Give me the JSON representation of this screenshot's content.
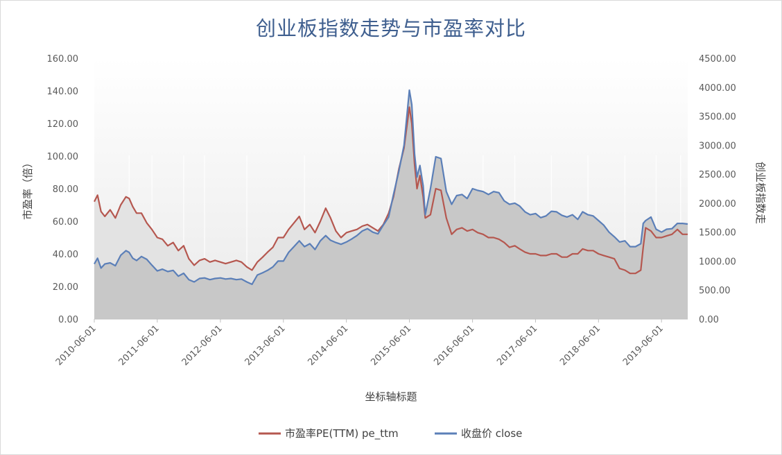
{
  "chart_data": {
    "type": "line",
    "title": "创业板指数走势与市盈率对比",
    "xlabel": "坐标轴标题",
    "ylabel_left": "市盈率（倍）",
    "ylabel_right": "创业板指数走",
    "ylim_left": [
      0,
      160
    ],
    "ylim_right": [
      0,
      4500
    ],
    "grid": false,
    "legend_position": "bottom",
    "x_start": "2010-06-01",
    "x_end": "2019-10-31",
    "x_tick_labels": [
      "2010-06-01",
      "2011-06-01",
      "2012-06-01",
      "2013-06-01",
      "2014-06-01",
      "2015-06-01",
      "2016-06-01",
      "2017-06-01",
      "2018-06-01",
      "2019-06-01"
    ],
    "y_left_tick_labels": [
      "0.00",
      "20.00",
      "40.00",
      "60.00",
      "80.00",
      "100.00",
      "120.00",
      "140.00",
      "160.00"
    ],
    "y_right_tick_labels": [
      "0.00",
      "500.00",
      "1000.00",
      "1500.00",
      "2000.00",
      "2500.00",
      "3000.00",
      "3500.00",
      "4000.00",
      "4500.00"
    ],
    "series": [
      {
        "name": "市盈率PE(TTM) pe_ttm",
        "axis": "left",
        "color": "#b5574f",
        "points": [
          [
            "2010-06-01",
            72
          ],
          [
            "2010-06-20",
            76
          ],
          [
            "2010-07-10",
            66
          ],
          [
            "2010-08-01",
            63
          ],
          [
            "2010-09-01",
            67
          ],
          [
            "2010-10-01",
            62
          ],
          [
            "2010-11-01",
            70
          ],
          [
            "2010-12-01",
            75
          ],
          [
            "2010-12-20",
            74
          ],
          [
            "2011-01-10",
            69
          ],
          [
            "2011-02-01",
            65
          ],
          [
            "2011-03-01",
            65
          ],
          [
            "2011-04-01",
            59
          ],
          [
            "2011-05-01",
            55
          ],
          [
            "2011-06-01",
            50
          ],
          [
            "2011-07-01",
            49
          ],
          [
            "2011-08-01",
            45
          ],
          [
            "2011-09-01",
            47
          ],
          [
            "2011-10-01",
            42
          ],
          [
            "2011-11-01",
            45
          ],
          [
            "2011-12-01",
            37
          ],
          [
            "2012-01-01",
            33
          ],
          [
            "2012-02-01",
            36
          ],
          [
            "2012-03-01",
            37
          ],
          [
            "2012-04-01",
            35
          ],
          [
            "2012-05-01",
            36
          ],
          [
            "2012-06-01",
            35
          ],
          [
            "2012-07-01",
            34
          ],
          [
            "2012-08-01",
            35
          ],
          [
            "2012-09-01",
            36
          ],
          [
            "2012-10-01",
            35
          ],
          [
            "2012-11-01",
            32
          ],
          [
            "2012-12-01",
            30
          ],
          [
            "2013-01-01",
            35
          ],
          [
            "2013-02-01",
            38
          ],
          [
            "2013-03-01",
            41
          ],
          [
            "2013-04-01",
            44
          ],
          [
            "2013-05-01",
            50
          ],
          [
            "2013-06-01",
            50
          ],
          [
            "2013-07-01",
            55
          ],
          [
            "2013-08-01",
            59
          ],
          [
            "2013-09-01",
            63
          ],
          [
            "2013-10-01",
            55
          ],
          [
            "2013-11-01",
            58
          ],
          [
            "2013-12-01",
            53
          ],
          [
            "2014-01-01",
            60
          ],
          [
            "2014-02-01",
            68
          ],
          [
            "2014-03-01",
            62
          ],
          [
            "2014-04-01",
            54
          ],
          [
            "2014-05-01",
            50
          ],
          [
            "2014-06-01",
            53
          ],
          [
            "2014-07-01",
            54
          ],
          [
            "2014-08-01",
            55
          ],
          [
            "2014-09-01",
            57
          ],
          [
            "2014-10-01",
            58
          ],
          [
            "2014-11-01",
            56
          ],
          [
            "2014-12-01",
            54
          ],
          [
            "2015-01-01",
            58
          ],
          [
            "2015-02-01",
            65
          ],
          [
            "2015-03-01",
            75
          ],
          [
            "2015-04-01",
            92
          ],
          [
            "2015-05-01",
            105
          ],
          [
            "2015-06-01",
            130
          ],
          [
            "2015-06-15",
            120
          ],
          [
            "2015-07-01",
            95
          ],
          [
            "2015-07-15",
            80
          ],
          [
            "2015-08-01",
            88
          ],
          [
            "2015-08-20",
            75
          ],
          [
            "2015-09-01",
            62
          ],
          [
            "2015-10-01",
            64
          ],
          [
            "2015-11-01",
            80
          ],
          [
            "2015-12-01",
            79
          ],
          [
            "2016-01-01",
            62
          ],
          [
            "2016-02-01",
            52
          ],
          [
            "2016-03-01",
            55
          ],
          [
            "2016-04-01",
            56
          ],
          [
            "2016-05-01",
            54
          ],
          [
            "2016-06-01",
            55
          ],
          [
            "2016-07-01",
            53
          ],
          [
            "2016-08-01",
            52
          ],
          [
            "2016-09-01",
            50
          ],
          [
            "2016-10-01",
            50
          ],
          [
            "2016-11-01",
            49
          ],
          [
            "2016-12-01",
            47
          ],
          [
            "2017-01-01",
            44
          ],
          [
            "2017-02-01",
            45
          ],
          [
            "2017-03-01",
            43
          ],
          [
            "2017-04-01",
            41
          ],
          [
            "2017-05-01",
            40
          ],
          [
            "2017-06-01",
            40
          ],
          [
            "2017-07-01",
            39
          ],
          [
            "2017-08-01",
            39
          ],
          [
            "2017-09-01",
            40
          ],
          [
            "2017-10-01",
            40
          ],
          [
            "2017-11-01",
            38
          ],
          [
            "2017-12-01",
            38
          ],
          [
            "2018-01-01",
            40
          ],
          [
            "2018-02-01",
            40
          ],
          [
            "2018-03-01",
            43
          ],
          [
            "2018-04-01",
            42
          ],
          [
            "2018-05-01",
            42
          ],
          [
            "2018-06-01",
            40
          ],
          [
            "2018-07-01",
            39
          ],
          [
            "2018-08-01",
            38
          ],
          [
            "2018-09-01",
            37
          ],
          [
            "2018-10-01",
            31
          ],
          [
            "2018-11-01",
            30
          ],
          [
            "2018-12-01",
            28
          ],
          [
            "2019-01-01",
            28
          ],
          [
            "2019-02-01",
            30
          ],
          [
            "2019-02-15",
            44
          ],
          [
            "2019-03-01",
            56
          ],
          [
            "2019-04-01",
            54
          ],
          [
            "2019-05-01",
            50
          ],
          [
            "2019-06-01",
            50
          ],
          [
            "2019-07-01",
            51
          ],
          [
            "2019-08-01",
            52
          ],
          [
            "2019-09-01",
            55
          ],
          [
            "2019-10-01",
            52
          ],
          [
            "2019-10-31",
            52
          ]
        ]
      },
      {
        "name": "收盘价 close",
        "axis": "right",
        "color": "#5b7fb8",
        "points": [
          [
            "2010-06-01",
            950
          ],
          [
            "2010-06-20",
            1050
          ],
          [
            "2010-07-10",
            880
          ],
          [
            "2010-08-01",
            950
          ],
          [
            "2010-09-01",
            970
          ],
          [
            "2010-10-01",
            920
          ],
          [
            "2010-11-01",
            1100
          ],
          [
            "2010-12-01",
            1180
          ],
          [
            "2010-12-20",
            1150
          ],
          [
            "2011-01-10",
            1050
          ],
          [
            "2011-02-01",
            1010
          ],
          [
            "2011-03-01",
            1080
          ],
          [
            "2011-04-01",
            1030
          ],
          [
            "2011-05-01",
            930
          ],
          [
            "2011-06-01",
            830
          ],
          [
            "2011-07-01",
            860
          ],
          [
            "2011-08-01",
            820
          ],
          [
            "2011-09-01",
            840
          ],
          [
            "2011-10-01",
            740
          ],
          [
            "2011-11-01",
            790
          ],
          [
            "2011-12-01",
            680
          ],
          [
            "2012-01-01",
            640
          ],
          [
            "2012-02-01",
            700
          ],
          [
            "2012-03-01",
            710
          ],
          [
            "2012-04-01",
            680
          ],
          [
            "2012-05-01",
            700
          ],
          [
            "2012-06-01",
            710
          ],
          [
            "2012-07-01",
            690
          ],
          [
            "2012-08-01",
            700
          ],
          [
            "2012-09-01",
            680
          ],
          [
            "2012-10-01",
            690
          ],
          [
            "2012-11-01",
            640
          ],
          [
            "2012-12-01",
            600
          ],
          [
            "2013-01-01",
            760
          ],
          [
            "2013-02-01",
            800
          ],
          [
            "2013-03-01",
            840
          ],
          [
            "2013-04-01",
            900
          ],
          [
            "2013-05-01",
            1000
          ],
          [
            "2013-06-01",
            1000
          ],
          [
            "2013-07-01",
            1150
          ],
          [
            "2013-08-01",
            1250
          ],
          [
            "2013-09-01",
            1350
          ],
          [
            "2013-10-01",
            1250
          ],
          [
            "2013-11-01",
            1300
          ],
          [
            "2013-12-01",
            1200
          ],
          [
            "2014-01-01",
            1350
          ],
          [
            "2014-02-01",
            1440
          ],
          [
            "2014-03-01",
            1360
          ],
          [
            "2014-04-01",
            1320
          ],
          [
            "2014-05-01",
            1290
          ],
          [
            "2014-06-01",
            1330
          ],
          [
            "2014-07-01",
            1380
          ],
          [
            "2014-08-01",
            1440
          ],
          [
            "2014-09-01",
            1520
          ],
          [
            "2014-10-01",
            1560
          ],
          [
            "2014-11-01",
            1500
          ],
          [
            "2014-12-01",
            1470
          ],
          [
            "2015-01-01",
            1620
          ],
          [
            "2015-02-01",
            1760
          ],
          [
            "2015-03-01",
            2150
          ],
          [
            "2015-04-01",
            2550
          ],
          [
            "2015-05-01",
            3000
          ],
          [
            "2015-06-01",
            3950
          ],
          [
            "2015-06-15",
            3700
          ],
          [
            "2015-07-01",
            2850
          ],
          [
            "2015-07-15",
            2450
          ],
          [
            "2015-08-01",
            2650
          ],
          [
            "2015-08-20",
            2300
          ],
          [
            "2015-09-01",
            1800
          ],
          [
            "2015-10-01",
            2250
          ],
          [
            "2015-11-01",
            2800
          ],
          [
            "2015-12-01",
            2770
          ],
          [
            "2016-01-01",
            2200
          ],
          [
            "2016-02-01",
            1980
          ],
          [
            "2016-03-01",
            2130
          ],
          [
            "2016-04-01",
            2150
          ],
          [
            "2016-05-01",
            2080
          ],
          [
            "2016-06-01",
            2250
          ],
          [
            "2016-07-01",
            2220
          ],
          [
            "2016-08-01",
            2200
          ],
          [
            "2016-09-01",
            2150
          ],
          [
            "2016-10-01",
            2200
          ],
          [
            "2016-11-01",
            2180
          ],
          [
            "2016-12-01",
            2040
          ],
          [
            "2017-01-01",
            1980
          ],
          [
            "2017-02-01",
            2000
          ],
          [
            "2017-03-01",
            1950
          ],
          [
            "2017-04-01",
            1850
          ],
          [
            "2017-05-01",
            1800
          ],
          [
            "2017-06-01",
            1820
          ],
          [
            "2017-07-01",
            1750
          ],
          [
            "2017-08-01",
            1780
          ],
          [
            "2017-09-01",
            1860
          ],
          [
            "2017-10-01",
            1850
          ],
          [
            "2017-11-01",
            1790
          ],
          [
            "2017-12-01",
            1760
          ],
          [
            "2018-01-01",
            1800
          ],
          [
            "2018-02-01",
            1720
          ],
          [
            "2018-03-01",
            1850
          ],
          [
            "2018-04-01",
            1800
          ],
          [
            "2018-05-01",
            1780
          ],
          [
            "2018-06-01",
            1700
          ],
          [
            "2018-07-01",
            1620
          ],
          [
            "2018-08-01",
            1500
          ],
          [
            "2018-09-01",
            1420
          ],
          [
            "2018-10-01",
            1330
          ],
          [
            "2018-11-01",
            1350
          ],
          [
            "2018-12-01",
            1250
          ],
          [
            "2019-01-01",
            1250
          ],
          [
            "2019-02-01",
            1300
          ],
          [
            "2019-02-15",
            1650
          ],
          [
            "2019-03-01",
            1700
          ],
          [
            "2019-04-01",
            1760
          ],
          [
            "2019-05-01",
            1550
          ],
          [
            "2019-06-01",
            1500
          ],
          [
            "2019-07-01",
            1550
          ],
          [
            "2019-08-01",
            1560
          ],
          [
            "2019-09-01",
            1650
          ],
          [
            "2019-10-01",
            1650
          ],
          [
            "2019-10-31",
            1640
          ]
        ]
      }
    ]
  }
}
